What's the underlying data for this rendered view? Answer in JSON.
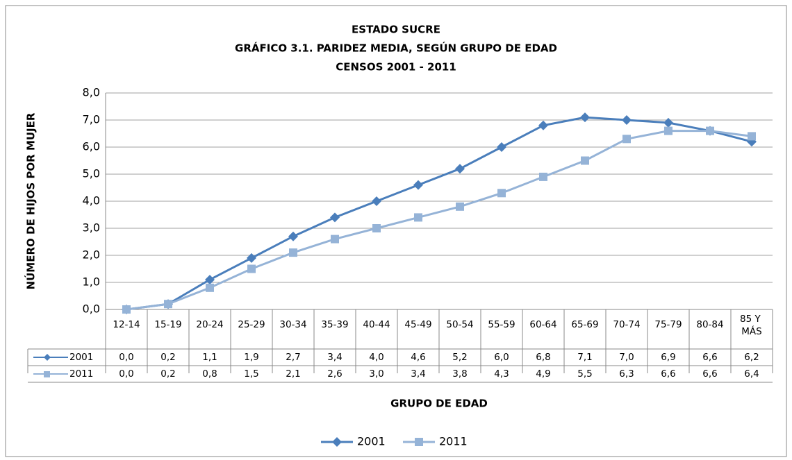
{
  "chart_data": {
    "type": "line",
    "title": [
      "ESTADO SUCRE",
      "GRÁFICO 3.1. PARIDEZ MEDIA, SEGÚN GRUPO DE EDAD",
      "CENSOS 2001 - 2011"
    ],
    "y_label": "NÚMERO DE HIJOS POR MUJER",
    "x_label": "GRUPO DE EDAD",
    "categories": [
      "12-14",
      "15-19",
      "20-24",
      "25-29",
      "30-34",
      "35-39",
      "40-44",
      "45-49",
      "50-54",
      "55-59",
      "60-64",
      "65-69",
      "70-74",
      "75-79",
      "80-84",
      "85 Y MÁS"
    ],
    "series": [
      {
        "name": "2001",
        "color": "#4a7ebb",
        "marker": "diamond",
        "values": [
          0.0,
          0.2,
          1.1,
          1.9,
          2.7,
          3.4,
          4.0,
          4.6,
          5.2,
          6.0,
          6.8,
          7.1,
          7.0,
          6.9,
          6.6,
          6.2
        ],
        "value_labels": [
          "0,0",
          "0,2",
          "1,1",
          "1,9",
          "2,7",
          "3,4",
          "4,0",
          "4,6",
          "5,2",
          "6,0",
          "6,8",
          "7,1",
          "7,0",
          "6,9",
          "6,6",
          "6,2"
        ]
      },
      {
        "name": "2011",
        "color": "#95b3d7",
        "marker": "square",
        "values": [
          0.0,
          0.2,
          0.8,
          1.5,
          2.1,
          2.6,
          3.0,
          3.4,
          3.8,
          4.3,
          4.9,
          5.5,
          6.3,
          6.6,
          6.6,
          6.4
        ],
        "value_labels": [
          "0,0",
          "0,2",
          "0,8",
          "1,5",
          "2,1",
          "2,6",
          "3,0",
          "3,4",
          "3,8",
          "4,3",
          "4,9",
          "5,5",
          "6,3",
          "6,6",
          "6,6",
          "6,4"
        ]
      }
    ],
    "ylim": [
      0,
      8
    ],
    "yticks": [
      {
        "value": 0,
        "label": "0,0"
      },
      {
        "value": 1,
        "label": "1,0"
      },
      {
        "value": 2,
        "label": "2,0"
      },
      {
        "value": 3,
        "label": "3,0"
      },
      {
        "value": 4,
        "label": "4,0"
      },
      {
        "value": 5,
        "label": "5,0"
      },
      {
        "value": 6,
        "label": "6,0"
      },
      {
        "value": 7,
        "label": "7,0"
      },
      {
        "value": 8,
        "label": "8,0"
      }
    ],
    "grid": true,
    "legend": "bottom"
  }
}
